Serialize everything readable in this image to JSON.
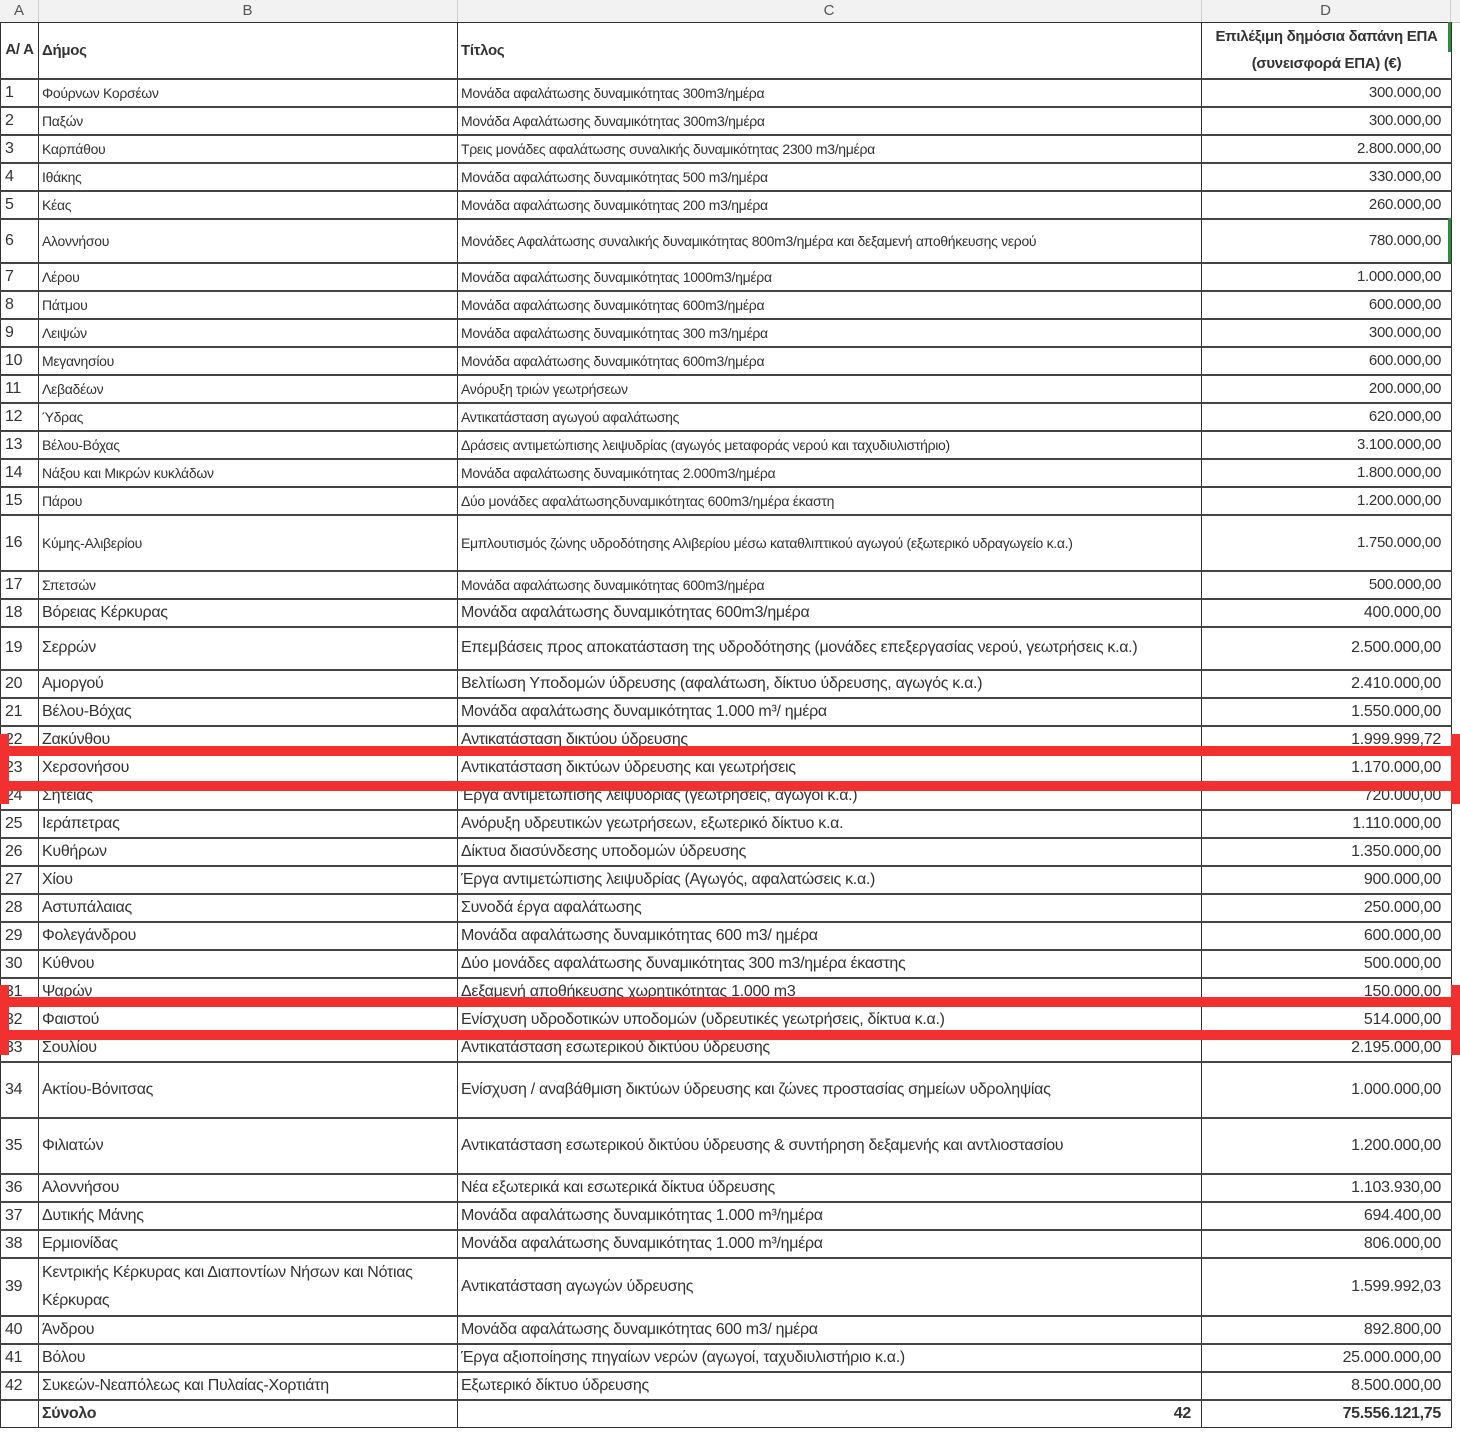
{
  "columns": [
    "A",
    "B",
    "C",
    "D"
  ],
  "header": {
    "aa": "Α/ Α",
    "dimos": "Δήμος",
    "titlos": "Τίτλος",
    "dapani": "Επιλέξιμη δημόσια δαπάνη ΕΠΑ (συνεισφορά ΕΠΑ) (€)"
  },
  "rows": [
    {
      "n": "1",
      "dimos": "Φούρνων Κορσέων",
      "titlos": "Μονάδα αφαλάτωσης δυναμικότητας 300m3/ημέρα",
      "dapani": "300.000,00"
    },
    {
      "n": "2",
      "dimos": "Παξών",
      "titlos": "Μονάδα Αφαλάτωσης δυναμικότητας 300m3/ημέρα",
      "dapani": "300.000,00"
    },
    {
      "n": "3",
      "dimos": "Καρπάθου",
      "titlos": "Τρεις μονάδες αφαλάτωσης συναλικής δυναμικότητας 2300 m3/ημέρα",
      "dapani": "2.800.000,00"
    },
    {
      "n": "4",
      "dimos": "Ιθάκης",
      "titlos": "Μονάδα αφαλάτωσης δυναμικότητας 500 m3/ημέρα",
      "dapani": "330.000,00"
    },
    {
      "n": "5",
      "dimos": "Κέας",
      "titlos": "Μονάδα αφαλάτωσης δυναμικότητας 200 m3/ημέρα",
      "dapani": "260.000,00"
    },
    {
      "n": "6",
      "dimos": "Αλοννήσου",
      "titlos": "Μονάδες Αφαλάτωσης συναλικής δυναμικότητας  800m3/ημέρα και δεξαμενή αποθήκευσης νερού",
      "dapani": "780.000,00"
    },
    {
      "n": "7",
      "dimos": "Λέρου",
      "titlos": "Μονάδα αφαλάτωσης δυναμικότητας 1000m3/ημέρα",
      "dapani": "1.000.000,00"
    },
    {
      "n": "8",
      "dimos": "Πάτμου",
      "titlos": "Μονάδα αφαλάτωσης δυναμικότητας 600m3/ημέρα",
      "dapani": "600.000,00"
    },
    {
      "n": "9",
      "dimos": "Λειψών",
      "titlos": "Μονάδα αφαλάτωσης δυναμικότητας 300 m3/ημέρα",
      "dapani": "300.000,00"
    },
    {
      "n": "10",
      "dimos": "Μεγανησίου",
      "titlos": "Μονάδα αφαλάτωσης δυναμικότητας 600m3/ημέρα",
      "dapani": "600.000,00"
    },
    {
      "n": "11",
      "dimos": "Λεβαδέων",
      "titlos": "Ανόρυξη τριών γεωτρήσεων",
      "dapani": "200.000,00"
    },
    {
      "n": "12",
      "dimos": "Ύδρας",
      "titlos": "Αντικατάσταση αγωγού αφαλάτωσης",
      "dapani": "620.000,00"
    },
    {
      "n": "13",
      "dimos": "Βέλου-Βόχας",
      "titlos": "Δράσεις αντιμετώπισης λειψυδρίας (αγωγός μεταφοράς νερού και ταχυδιυλιστήριο)",
      "dapani": "3.100.000,00"
    },
    {
      "n": "14",
      "dimos": "Νάξου και Μικρών κυκλάδων",
      "titlos": "Μονάδα αφαλάτωσης δυναμικότητας 2.000m3/ημέρα",
      "dapani": "1.800.000,00"
    },
    {
      "n": "15",
      "dimos": "Πάρου",
      "titlos": "Δύο μονάδες αφαλάτωσηςδυναμικότητας 600m3/ημέρα έκαστη",
      "dapani": "1.200.000,00"
    },
    {
      "n": "16",
      "dimos": "Κύμης-Αλιβερίου",
      "titlos": "Εμπλουτισμός ζώνης υδροδότησης Αλιβερίου μέσω καταθλιπτικού αγωγού (εξωτερικό υδραγωγείο κ.α.)",
      "dapani": "1.750.000,00"
    },
    {
      "n": "17",
      "dimos": "Σπετσών",
      "titlos": "Μονάδα αφαλάτωσης δυναμικότητας 600m3/ημέρα",
      "dapani": "500.000,00"
    },
    {
      "n": "18",
      "dimos": "Βόρειας Κέρκυρας",
      "titlos": "Μονάδα αφαλάτωσης δυναμικότητας 600m3/ημέρα",
      "dapani": "400.000,00"
    },
    {
      "n": "19",
      "dimos": "Σερρών",
      "titlos": "Επεμβάσεις προς αποκατάσταση της υδροδότησης (μονάδες επεξεργασίας νερού, γεωτρήσεις κ.α.)",
      "dapani": "2.500.000,00"
    },
    {
      "n": "20",
      "dimos": "Αμοργού",
      "titlos": "Βελτίωση Υποδομών ύδρευσης (αφαλάτωση, δίκτυο ύδρευσης, αγωγός κ.α.)",
      "dapani": "2.410.000,00"
    },
    {
      "n": "21",
      "dimos": "Βέλου-Βόχας",
      "titlos": "Μονάδα αφαλάτωσης δυναμικότητας 1.000 m³/ ημέρα",
      "dapani": "1.550.000,00"
    },
    {
      "n": "22",
      "dimos": "Ζακύνθου",
      "titlos": "Αντικατάσταση δικτύου ύδρευσης",
      "dapani": "1.999.999,72"
    },
    {
      "n": "23",
      "dimos": "Χερσονήσου",
      "titlos": "Αντικατάσταση δικτύων ύδρευσης και γεωτρήσεις",
      "dapani": "1.170.000,00"
    },
    {
      "n": "24",
      "dimos": "Σητείας",
      "titlos": "Έργα αντιμετώπισης λειψυδρίας (γεωτρήσεις, αγωγοί κ.α.)",
      "dapani": "720.000,00"
    },
    {
      "n": "25",
      "dimos": "Ιεράπετρας",
      "titlos": "Ανόρυξη υδρευτικών γεωτρήσεων, εξωτερικό δίκτυο κ.α.",
      "dapani": "1.110.000,00"
    },
    {
      "n": "26",
      "dimos": "Κυθήρων",
      "titlos": "Δίκτυα διασύνδεσης υποδομών ύδρευσης",
      "dapani": "1.350.000,00"
    },
    {
      "n": "27",
      "dimos": "Χίου",
      "titlos": "Έργα αντιμετώπισης λειψυδρίας (Αγωγός, αφαλατώσεις κ.α.)",
      "dapani": "900.000,00"
    },
    {
      "n": "28",
      "dimos": "Αστυπάλαιας",
      "titlos": "Συνοδά έργα αφαλάτωσης",
      "dapani": "250.000,00"
    },
    {
      "n": "29",
      "dimos": "Φολεγάνδρου",
      "titlos": "Μονάδα αφαλάτωσης δυναμικότητας 600 m3/ ημέρα",
      "dapani": "600.000,00"
    },
    {
      "n": "30",
      "dimos": "Κύθνου",
      "titlos": "Δύο μονάδες αφαλάτωσης  δυναμικότητας 300 m3/ημέρα έκαστης",
      "dapani": "500.000,00"
    },
    {
      "n": "31",
      "dimos": "Ψαρών",
      "titlos": "Δεξαμενή αποθήκευσης χωρητικότητας 1.000 m3",
      "dapani": "150.000,00"
    },
    {
      "n": "32",
      "dimos": "Φαιστού",
      "titlos": "Ενίσχυση υδροδοτικών υποδομών (υδρευτικές γεωτρήσεις, δίκτυα κ.α.)",
      "dapani": "514.000,00"
    },
    {
      "n": "33",
      "dimos": "Σουλίου",
      "titlos": "Αντικατάσταση εσωτερικού δικτύου ύδρευσης",
      "dapani": "2.195.000,00"
    },
    {
      "n": "34",
      "dimos": "Ακτίου-Βόνιτσας",
      "titlos": "Ενίσχυση / αναβάθμιση δικτύων ύδρευσης και ζώνες προστασίας σημείων υδροληψίας",
      "dapani": "1.000.000,00"
    },
    {
      "n": "35",
      "dimos": "Φιλιατών",
      "titlos": "Αντικατάσταση  εσωτερικού δικτύου ύδρευσης  & συντήρηση δεξαμενής και αντλιοστασίου",
      "dapani": "1.200.000,00"
    },
    {
      "n": "36",
      "dimos": "Αλοννήσου",
      "titlos": "Νέα εξωτερικά και εσωτερικά δίκτυα ύδρευσης",
      "dapani": "1.103.930,00"
    },
    {
      "n": "37",
      "dimos": "Δυτικής Μάνης",
      "titlos": "Μονάδα αφαλάτωσης δυναμικότητας 1.000 m³/ημέρα",
      "dapani": "694.400,00"
    },
    {
      "n": "38",
      "dimos": "Ερμιονίδας",
      "titlos": "Μονάδα αφαλάτωσης δυναμικότητας 1.000 m³/ημέρα",
      "dapani": "806.000,00"
    },
    {
      "n": "39",
      "dimos": "Κεντρικής Κέρκυρας και Διαποντίων Νήσων και Νότιας Κέρκυρας",
      "titlos": "Αντικατάσταση αγωγών ύδρευσης",
      "dapani": "1.599.992,03"
    },
    {
      "n": "40",
      "dimos": "Άνδρου",
      "titlos": "Μονάδα αφαλάτωσης δυναμικότητας 600 m3/ ημέρα",
      "dapani": "892.800,00"
    },
    {
      "n": "41",
      "dimos": "Βόλου",
      "titlos": "Έργα αξιοποίησης πηγαίων νερών (αγωγοί, ταχυδιυλιστήριο κ.α.)",
      "dapani": "25.000.000,00"
    },
    {
      "n": "42",
      "dimos": "Συκεών-Νεαπόλεως και Πυλαίας-Χορτιάτη",
      "titlos": "Εξωτερικό δίκτυο ύδρευσης",
      "dapani": "8.500.000,00"
    }
  ],
  "total": {
    "label": "Σύνολο",
    "count": "42",
    "sum": "75.556.121,75"
  },
  "colors": {
    "highlight": "#f23030",
    "selection": "#2e8b3e"
  }
}
